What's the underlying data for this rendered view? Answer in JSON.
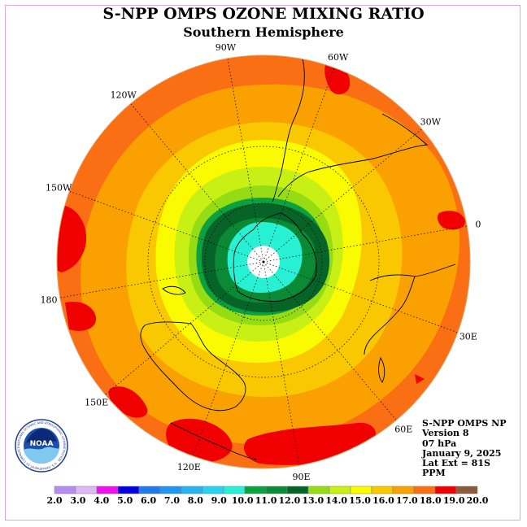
{
  "title": "S-NPP OMPS OZONE MIXING RATIO",
  "subtitle": "Southern Hemisphere",
  "logo_text": "NOAA",
  "logo_ring_text": "NATIONAL OCEANIC AND ATMOSPHERIC ADMINISTRATION · U.S. DEPARTMENT OF COMMERCE",
  "info": {
    "instrument": "S-NPP OMPS NP",
    "version": "Version 8",
    "level": "07 hPa",
    "date": "January 9, 2025",
    "lat_ext": "Lat Ext = 81S",
    "units": "PPM"
  },
  "longitude_labels": [
    {
      "label": "0",
      "lon": 0
    },
    {
      "label": "30W",
      "lon": -30
    },
    {
      "label": "60W",
      "lon": -60
    },
    {
      "label": "90W",
      "lon": -90
    },
    {
      "label": "120W",
      "lon": -120
    },
    {
      "label": "150W",
      "lon": -150
    },
    {
      "label": "180",
      "lon": 180
    },
    {
      "label": "150E",
      "lon": 150
    },
    {
      "label": "120E",
      "lon": 120
    },
    {
      "label": "90E",
      "lon": 90
    },
    {
      "label": "60E",
      "lon": 60
    },
    {
      "label": "30E",
      "lon": 30
    }
  ],
  "colorbar": {
    "ticks": [
      "2.0",
      "3.0",
      "4.0",
      "5.0",
      "6.0",
      "7.0",
      "8.0",
      "9.0",
      "10.0",
      "11.0",
      "12.0",
      "13.0",
      "14.0",
      "15.0",
      "16.0",
      "17.0",
      "18.0",
      "19.0",
      "20.0"
    ],
    "colors": [
      "#b58cf0",
      "#dcb8f5",
      "#ee10ee",
      "#0000e0",
      "#1e78f0",
      "#1e96f0",
      "#28b4f0",
      "#28d2f0",
      "#28f0d2",
      "#0ca040",
      "#0a8a34",
      "#066428",
      "#96dc14",
      "#c8f014",
      "#fafa00",
      "#fac800",
      "#faa000",
      "#fa6e14",
      "#f00000",
      "#8c5a3c"
    ]
  },
  "map_colors": {
    "orange_dark": "#fa6e14",
    "orange": "#faa000",
    "gold": "#fac800",
    "yellow": "#fafa00",
    "yellow_green": "#c8f014",
    "light_green": "#96dc14",
    "green_dark": "#066428",
    "green_mid": "#0a8a34",
    "green": "#0ca040",
    "cyan": "#28f0d2",
    "red": "#f00000",
    "pole": "#ffffff"
  }
}
